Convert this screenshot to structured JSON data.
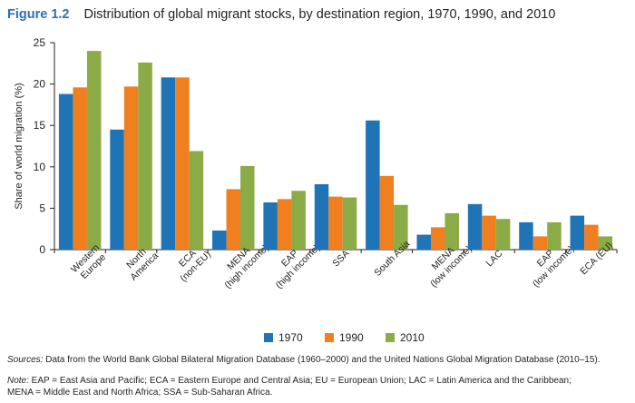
{
  "figure": {
    "label": "Figure 1.2",
    "title": "Distribution of global migrant stocks, by destination region, 1970, 1990, and 2010"
  },
  "chart_data": {
    "type": "bar",
    "ylabel": "Share of world migration (%)",
    "xlabel": "",
    "ylim": [
      0,
      25
    ],
    "yticks": [
      0,
      5,
      10,
      15,
      20,
      25
    ],
    "grid": false,
    "legend_position": "bottom-center",
    "categories": [
      [
        "Western",
        "Europe"
      ],
      [
        "North",
        "America"
      ],
      [
        "ECA",
        "(non-EU)"
      ],
      [
        "MENA",
        "(high income)"
      ],
      [
        "EAP",
        "(high income)"
      ],
      [
        "SSA"
      ],
      [
        "South Asia"
      ],
      [
        "MENA",
        "(low income)"
      ],
      [
        "LAC"
      ],
      [
        "EAP",
        "(low income)"
      ],
      [
        "ECA (EU)"
      ]
    ],
    "series": [
      {
        "name": "1970",
        "color": "#1f73b7",
        "values": [
          18.8,
          14.5,
          20.8,
          2.3,
          5.7,
          7.9,
          15.6,
          1.8,
          5.5,
          3.3,
          4.1
        ]
      },
      {
        "name": "1990",
        "color": "#f07f20",
        "values": [
          19.6,
          19.7,
          20.8,
          7.3,
          6.1,
          6.4,
          8.9,
          2.7,
          4.1,
          1.6,
          3.0
        ]
      },
      {
        "name": "2010",
        "color": "#8aab46",
        "values": [
          24.0,
          22.6,
          11.9,
          10.1,
          7.1,
          6.3,
          5.4,
          4.4,
          3.7,
          3.3,
          1.6
        ]
      }
    ]
  },
  "sources": {
    "label": "Sources:",
    "text": " Data from the World Bank Global Bilateral Migration Database (1960–2000) and the United Nations Global Migration Database (2010–15)."
  },
  "note": {
    "label": "Note:",
    "line1": " EAP = East Asia and Pacific; ECA = Eastern Europe and Central Asia; EU = European Union; LAC = Latin America and the Caribbean;",
    "line2": "MENA = Middle East and North Africa; SSA = Sub-Saharan Africa."
  }
}
